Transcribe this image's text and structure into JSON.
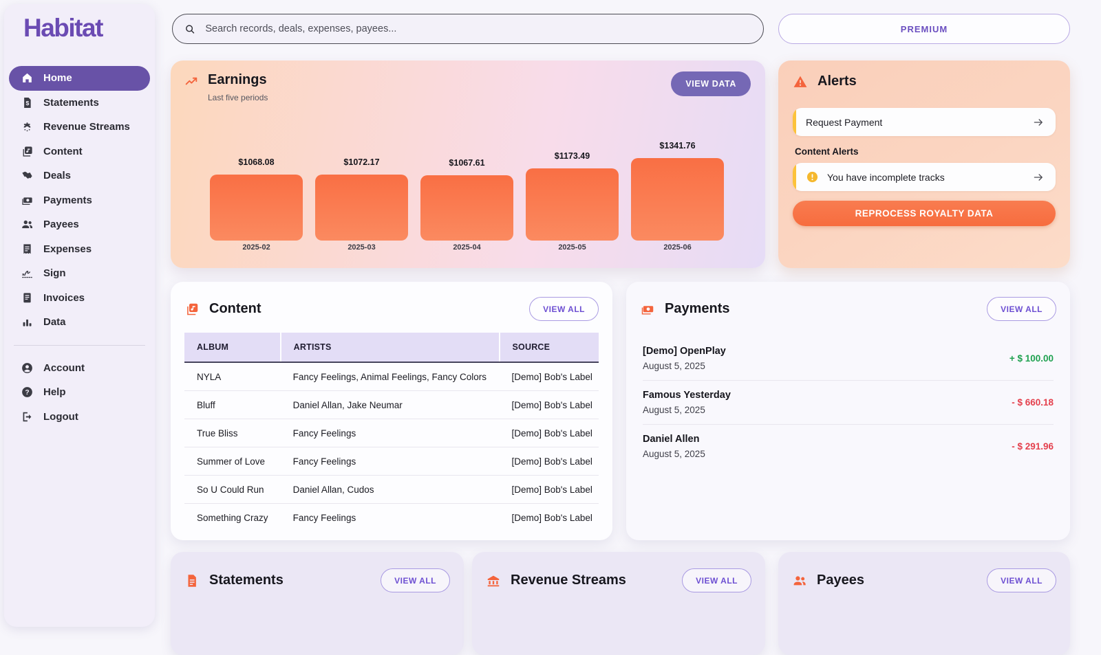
{
  "brand": {
    "name": "Habitat",
    "color": "#6b4bb3"
  },
  "search": {
    "placeholder": "Search records, deals, expenses, payees..."
  },
  "premium_label": "PREMIUM",
  "sidebar": {
    "items": [
      {
        "label": "Home",
        "icon": "home-icon",
        "active": true
      },
      {
        "label": "Statements",
        "icon": "statements-icon",
        "active": false
      },
      {
        "label": "Revenue Streams",
        "icon": "revenue-streams-icon",
        "active": false
      },
      {
        "label": "Content",
        "icon": "content-icon",
        "active": false
      },
      {
        "label": "Deals",
        "icon": "deals-icon",
        "active": false
      },
      {
        "label": "Payments",
        "icon": "payments-icon",
        "active": false
      },
      {
        "label": "Payees",
        "icon": "payees-icon",
        "active": false
      },
      {
        "label": "Expenses",
        "icon": "expenses-icon",
        "active": false
      },
      {
        "label": "Sign",
        "icon": "sign-icon",
        "active": false
      },
      {
        "label": "Invoices",
        "icon": "invoices-icon",
        "active": false
      },
      {
        "label": "Data",
        "icon": "data-icon",
        "active": false
      }
    ],
    "footer_items": [
      {
        "label": "Account",
        "icon": "account-icon"
      },
      {
        "label": "Help",
        "icon": "help-icon"
      },
      {
        "label": "Logout",
        "icon": "logout-icon"
      }
    ]
  },
  "earnings": {
    "title": "Earnings",
    "subtitle": "Last five periods",
    "view_data_label": "VIEW DATA",
    "icon": "trending-up-icon"
  },
  "chart_data": {
    "type": "bar",
    "title": "Earnings",
    "categories": [
      "2025-02",
      "2025-03",
      "2025-04",
      "2025-05",
      "2025-06"
    ],
    "values": [
      1068.08,
      1072.17,
      1067.61,
      1173.49,
      1341.76
    ],
    "labels": [
      "$1068.08",
      "$1072.17",
      "$1067.61",
      "$1173.49",
      "$1341.76"
    ],
    "ylim": [
      0,
      1341.76
    ],
    "grid": false,
    "legend": false,
    "bar_color": "#f97a4e"
  },
  "alerts": {
    "title": "Alerts",
    "icon": "warning-icon",
    "request_payment_label": "Request Payment",
    "content_alerts_label": "Content Alerts",
    "incomplete_tracks_label": "You have incomplete tracks",
    "reprocess_label": "REPROCESS ROYALTY DATA",
    "accent_color": "#fcc23b",
    "warning_color": "#f4643c"
  },
  "content": {
    "title": "Content",
    "icon": "music-copy-icon",
    "view_all_label": "VIEW ALL",
    "columns": [
      "ALBUM",
      "ARTISTS",
      "SOURCE"
    ],
    "rows": [
      {
        "album": "NYLA",
        "artists": "Fancy Feelings, Animal Feelings, Fancy Colors",
        "source": "[Demo] Bob's Label"
      },
      {
        "album": "Bluff",
        "artists": "Daniel Allan, Jake Neumar",
        "source": "[Demo] Bob's Label"
      },
      {
        "album": "True Bliss",
        "artists": "Fancy Feelings",
        "source": "[Demo] Bob's Label"
      },
      {
        "album": "Summer of Love",
        "artists": "Fancy Feelings",
        "source": "[Demo] Bob's Label"
      },
      {
        "album": "So U Could Run",
        "artists": "Daniel Allan, Cudos",
        "source": "[Demo] Bob's Label"
      },
      {
        "album": "Something Crazy",
        "artists": "Fancy Feelings",
        "source": "[Demo] Bob's Label"
      }
    ]
  },
  "payments": {
    "title": "Payments",
    "icon": "cash-icon",
    "view_all_label": "VIEW ALL",
    "positive_color": "#1fa150",
    "negative_color": "#e4404d",
    "rows": [
      {
        "name": "[Demo] OpenPlay",
        "date": "August 5, 2025",
        "amount": "+ $ 100.00",
        "direction": "positive"
      },
      {
        "name": "Famous Yesterday",
        "date": "August 5, 2025",
        "amount": "- $ 660.18",
        "direction": "negative"
      },
      {
        "name": "Daniel Allen",
        "date": "August 5, 2025",
        "amount": "- $ 291.96",
        "direction": "negative"
      }
    ]
  },
  "bottom_cards": [
    {
      "title": "Statements",
      "icon": "document-icon",
      "view_all_label": "VIEW ALL"
    },
    {
      "title": "Revenue Streams",
      "icon": "bank-icon",
      "view_all_label": "VIEW ALL"
    },
    {
      "title": "Payees",
      "icon": "people-icon",
      "view_all_label": "VIEW ALL"
    }
  ]
}
